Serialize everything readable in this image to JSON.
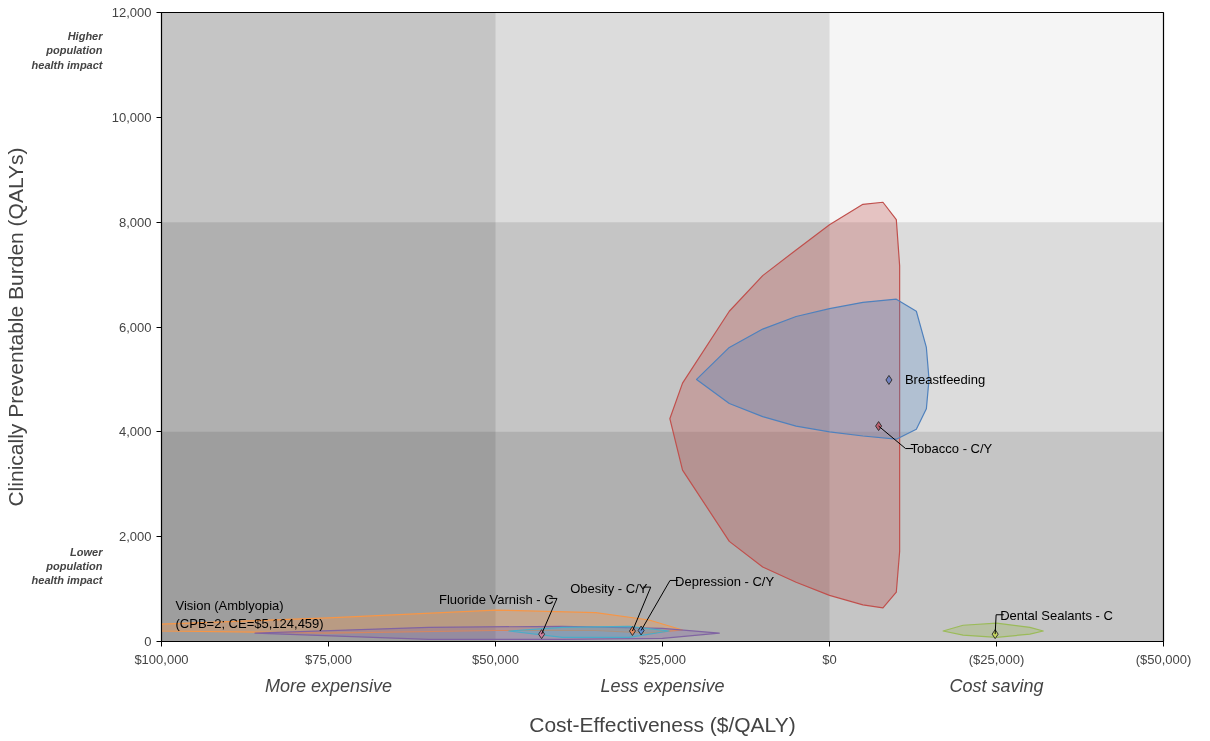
{
  "chart_data": {
    "type": "scatter",
    "xlabel": "Cost-Effectiveness ($/QALY)",
    "ylabel": "Clinically Preventable Burden (QALYs)",
    "xlim": [
      100000,
      -50000
    ],
    "xticks": [
      {
        "value": 100000,
        "label": "$100,000"
      },
      {
        "value": 75000,
        "label": "$75,000"
      },
      {
        "value": 50000,
        "label": "$50,000"
      },
      {
        "value": 25000,
        "label": "$25,000"
      },
      {
        "value": 0,
        "label": "$0"
      },
      {
        "value": -25000,
        "label": "($25,000)"
      },
      {
        "value": -50000,
        "label": "($50,000)"
      }
    ],
    "ylim": [
      0,
      12000
    ],
    "yticks": [
      0,
      {
        "value": 2000,
        "label": "2,000"
      },
      {
        "value": 4000,
        "label": "4,000"
      },
      {
        "value": 6000,
        "label": "6,000"
      },
      {
        "value": 8000,
        "label": "8,000"
      },
      {
        "value": 10000,
        "label": "10,000"
      },
      {
        "value": 12000,
        "label": "12,000"
      }
    ],
    "grid": false,
    "legend": false,
    "bands": [
      {
        "axis": "x",
        "from": 100000,
        "to": 50000,
        "color": "#000000"
      },
      {
        "axis": "x",
        "from": 100000,
        "to": 0,
        "color": "#000000"
      },
      {
        "axis": "y",
        "from": 0,
        "to": 8000,
        "color": "#000000"
      },
      {
        "axis": "y",
        "from": 0,
        "to": 4000,
        "color": "#000000"
      }
    ],
    "annotations": [
      "Higher\npopulation\nhealth impact",
      "Lower\npopulation\nhealth impact",
      "More expensive",
      "Less expensive",
      "Cost saving",
      "Vision (Amblyopia)\n(CPB=2; CE=$5,124,459)"
    ],
    "series": [
      {
        "type": "area",
        "marker": "none",
        "color": "#f79646",
        "x": [
          100000,
          75000,
          50000,
          35000,
          27000,
          22000,
          27000,
          35000,
          50000,
          75000,
          100000
        ],
        "values": [
          330,
          450,
          600,
          550,
          410,
          220,
          160,
          210,
          210,
          160,
          200
        ]
      },
      {
        "type": "area",
        "marker": "none",
        "color": "#8064a2",
        "x": [
          86000,
          60000,
          40000,
          25000,
          16500,
          25000,
          40000,
          60000
        ],
        "values": [
          160,
          270,
          290,
          250,
          160,
          60,
          40,
          40
        ]
      },
      {
        "type": "area",
        "marker": "none",
        "color": "#4bacc6",
        "x": [
          48000,
          40000,
          30000,
          24000,
          30000,
          40000
        ],
        "values": [
          200,
          270,
          290,
          200,
          80,
          80
        ]
      },
      {
        "type": "area",
        "marker": "none",
        "color": "#9bbb59",
        "x": [
          -17000,
          -20000,
          -25000,
          -30000,
          -32000,
          -30000,
          -25000,
          -20000
        ],
        "values": [
          200,
          310,
          350,
          270,
          200,
          140,
          80,
          120
        ]
      },
      {
        "type": "area",
        "marker": "none",
        "color": "#c0504d",
        "x": [
          23900,
          22000,
          15000,
          10000,
          5000,
          0,
          -5000,
          -8000,
          -10000,
          -10500,
          -10500,
          -10000,
          -8000,
          -5000,
          0,
          5000,
          10000,
          15000,
          22000
        ],
        "values": [
          4250,
          4930,
          6300,
          6980,
          7470,
          7950,
          8340,
          8380,
          8050,
          7170,
          1720,
          940,
          640,
          700,
          880,
          1130,
          1420,
          1910,
          3270
        ]
      },
      {
        "type": "area",
        "marker": "none",
        "color": "#4f81bd",
        "x": [
          19900,
          15000,
          10000,
          5000,
          0,
          -5000,
          -10000,
          -13000,
          -14500,
          -14900,
          -14500,
          -13000,
          -10000,
          -5000,
          0,
          5000,
          10000,
          15000
        ],
        "values": [
          5000,
          5610,
          5960,
          6200,
          6350,
          6470,
          6530,
          6300,
          5610,
          5000,
          4440,
          4050,
          3860,
          3920,
          4000,
          4110,
          4290,
          4540
        ]
      },
      {
        "name": "Breastfeeding",
        "marker": "diamond",
        "color": "#7080c0",
        "x": [
          -8900
        ],
        "values": [
          4990
        ]
      },
      {
        "name": "Tobacco - C/Y",
        "marker": "diamond",
        "color": "#c06070",
        "x": [
          -7350
        ],
        "values": [
          4110
        ]
      },
      {
        "name": "Dental Sealants - C",
        "marker": "diamond",
        "color": "#c8d860",
        "x": [
          -24800
        ],
        "values": [
          140
        ]
      },
      {
        "name": "Depression - C/Y",
        "marker": "diamond",
        "color": "#6090d0",
        "x": [
          28200
        ],
        "values": [
          210
        ]
      },
      {
        "name": "Obesity - C/Y",
        "marker": "diamond",
        "color": "#e08a60",
        "x": [
          29500
        ],
        "values": [
          200
        ]
      },
      {
        "name": "Fluoride Varnish - C",
        "marker": "diamond",
        "color": "#d080a0",
        "x": [
          43100
        ],
        "values": [
          140
        ]
      }
    ]
  }
}
